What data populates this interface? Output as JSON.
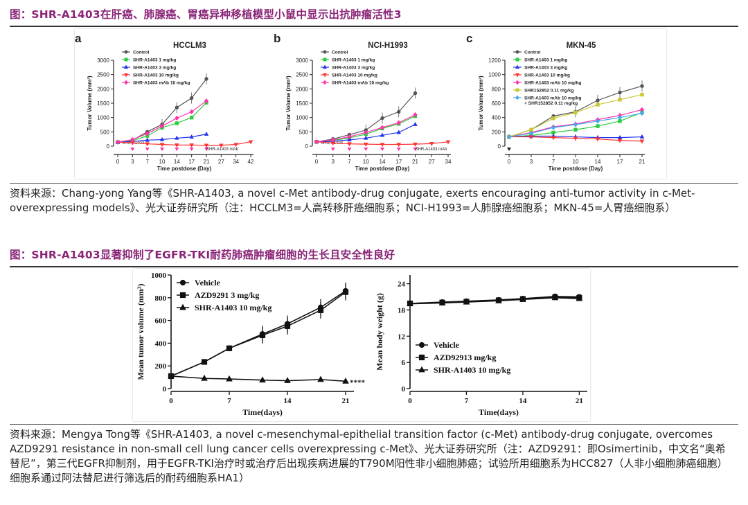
{
  "fig1": {
    "heading": "图：SHR-A1403在肝癌、肺腺癌、胃癌异种移植模型小鼠中显示出抗肿瘤活性3",
    "source": "资料来源：Chang-yong Yang等《SHR-A1403, a novel c-Met antibody-drug conjugate, exerts encouraging anti-tumor activity in c-Met-overexpressing models》、光大证券研究所（注：HCCLM3=人高转移肝癌细胞系；NCI-H1993=人肺腺癌细胞系；MKN-45=人胃癌细胞系）"
  },
  "fig2": {
    "heading": "图：SHR-A1403显著抑制了EGFR-TKI耐药肺癌肿瘤细胞的生长且安全性良好",
    "source": "资料来源：Mengya Tong等《SHR-A1403, a novel c-mesenchymal-epithelial transition factor (c-Met) antibody-drug conjugate, overcomes AZD9291 resistance in non-small cell lung cancer cells overexpressing c-Met》、光大证券研究所（注：AZD9291：即Osimertinib，中文名“奥希替尼”，第三代EGFR抑制剂，用于EGFR-TKI治疗时或治疗后出现疾病进展的T790M阳性非小细胞肺癌；试验所用细胞系为HCC827（人非小细胞肺癌细胞）细胞系通过阿法替尼进行筛选后的耐药细胞系HA1）"
  },
  "chart_data": [
    {
      "type": "line",
      "panel": "a",
      "title": "HCCLM3",
      "xlabel": "Time postdose (Day)",
      "ylabel": "Tumor Volume (mm³)",
      "xticks": [
        0,
        3,
        7,
        10,
        14,
        17,
        21,
        27,
        34,
        42
      ],
      "yticks": [
        0,
        500,
        1000,
        1500,
        2000,
        2500,
        3000
      ],
      "ylim": [
        0,
        3000
      ],
      "legend": "top-left",
      "annotations": [
        "SHR-A1403",
        "SHR-A1403 mAb"
      ],
      "series": [
        {
          "name": "Control",
          "color": "#555555",
          "marker": "circle",
          "x": [
            0,
            3,
            7,
            10,
            14,
            17,
            21
          ],
          "y": [
            140,
            210,
            500,
            760,
            1350,
            1680,
            2350
          ]
        },
        {
          "name": "SHR-A1403 1 mg/kg",
          "color": "#2ecc40",
          "marker": "square",
          "x": [
            0,
            3,
            7,
            10,
            14,
            17,
            21
          ],
          "y": [
            140,
            190,
            360,
            650,
            800,
            1000,
            1520
          ]
        },
        {
          "name": "SHR-A1403 3 mg/kg",
          "color": "#2233ee",
          "marker": "triangle",
          "x": [
            0,
            3,
            7,
            10,
            14,
            17,
            21
          ],
          "y": [
            140,
            160,
            210,
            230,
            280,
            320,
            420
          ]
        },
        {
          "name": "SHR-A1403 10 mg/kg",
          "color": "#ff3333",
          "marker": "triangle-down",
          "x": [
            0,
            3,
            7,
            10,
            14,
            17,
            21,
            27,
            34,
            42
          ],
          "y": [
            140,
            120,
            80,
            60,
            40,
            40,
            30,
            30,
            60,
            150
          ]
        },
        {
          "name": "SHR-A1403 mAb 10 mg/kg",
          "color": "#ff33aa",
          "marker": "diamond",
          "x": [
            0,
            3,
            7,
            10,
            14,
            17,
            21
          ],
          "y": [
            140,
            230,
            440,
            700,
            980,
            1200,
            1580
          ]
        }
      ]
    },
    {
      "type": "line",
      "panel": "b",
      "title": "NCI-H1993",
      "xlabel": "Time postdose (Day)",
      "ylabel": "Tumor Volume (mm³)",
      "xticks": [
        0,
        3,
        7,
        10,
        14,
        17,
        21,
        27,
        34
      ],
      "yticks": [
        0,
        500,
        1000,
        1500,
        2000,
        2500,
        3000
      ],
      "ylim": [
        0,
        3000
      ],
      "legend": "top-left",
      "annotations": [
        "SHR-A1403",
        "SHR-A1403 mAb"
      ],
      "series": [
        {
          "name": "Control",
          "color": "#555555",
          "marker": "circle",
          "x": [
            0,
            3,
            7,
            10,
            14,
            17,
            21
          ],
          "y": [
            150,
            250,
            400,
            560,
            980,
            1200,
            1850
          ]
        },
        {
          "name": "SHR-A1403 1 mg/kg",
          "color": "#2ecc40",
          "marker": "square",
          "x": [
            0,
            3,
            7,
            10,
            14,
            17,
            21
          ],
          "y": [
            150,
            200,
            290,
            420,
            620,
            780,
            1050
          ]
        },
        {
          "name": "SHR-A1403 3 mg/kg",
          "color": "#2233ee",
          "marker": "triangle",
          "x": [
            0,
            3,
            7,
            10,
            14,
            17,
            21
          ],
          "y": [
            150,
            170,
            220,
            280,
            380,
            480,
            760
          ]
        },
        {
          "name": "SHR-A1403 10 mg/kg",
          "color": "#ff3333",
          "marker": "triangle-down",
          "x": [
            0,
            3,
            7,
            10,
            14,
            17,
            21,
            27,
            34
          ],
          "y": [
            150,
            110,
            80,
            70,
            60,
            60,
            70,
            90,
            150
          ]
        },
        {
          "name": "SHR-A1403 mAb 10 mg/kg",
          "color": "#ff33aa",
          "marker": "diamond",
          "x": [
            0,
            3,
            7,
            10,
            14,
            17,
            21
          ],
          "y": [
            150,
            220,
            330,
            480,
            650,
            820,
            1100
          ]
        }
      ]
    },
    {
      "type": "line",
      "panel": "c",
      "title": "MKN-45",
      "xlabel": "Time postdose (Day)",
      "ylabel": "Tumor Volume (mm³)",
      "xticks": [
        0,
        3,
        7,
        10,
        14,
        17,
        21
      ],
      "yticks": [
        0,
        200,
        400,
        600,
        800,
        1000,
        1200
      ],
      "ylim": [
        0,
        1200
      ],
      "legend": "top-left",
      "series": [
        {
          "name": "Control",
          "color": "#555555",
          "marker": "circle",
          "x": [
            0,
            3,
            7,
            10,
            14,
            17,
            21
          ],
          "y": [
            130,
            230,
            420,
            480,
            640,
            750,
            840
          ]
        },
        {
          "name": "SHR-A1403 1 mg/kg",
          "color": "#2ecc40",
          "marker": "square",
          "x": [
            0,
            3,
            7,
            10,
            14,
            17,
            21
          ],
          "y": [
            130,
            150,
            190,
            230,
            280,
            350,
            470
          ]
        },
        {
          "name": "SHR-A1403 3 mg/kg",
          "color": "#2233ee",
          "marker": "triangle",
          "x": [
            0,
            3,
            7,
            10,
            14,
            17,
            21
          ],
          "y": [
            130,
            140,
            140,
            130,
            120,
            120,
            130
          ]
        },
        {
          "name": "SHR-A1403 10 mg/kg",
          "color": "#ff3333",
          "marker": "triangle-down",
          "x": [
            0,
            3,
            7,
            10,
            14,
            17,
            21
          ],
          "y": [
            130,
            130,
            120,
            110,
            100,
            80,
            70
          ]
        },
        {
          "name": "SHR-A1403 mAb 10 mg/kg",
          "color": "#ff33aa",
          "marker": "diamond",
          "x": [
            0,
            3,
            7,
            10,
            14,
            17,
            21
          ],
          "y": [
            130,
            190,
            270,
            310,
            370,
            430,
            510
          ]
        },
        {
          "name": "SHR152852 0.11 mg/kg",
          "color": "#c8c832",
          "marker": "square",
          "x": [
            0,
            3,
            7,
            10,
            14,
            17,
            21
          ],
          "y": [
            130,
            230,
            390,
            470,
            580,
            650,
            720
          ]
        },
        {
          "name": "SHR-A1403 mAb 10 mg/kg + SHR152852 0.11 mg/kg",
          "color": "#44aaee",
          "marker": "diamond",
          "x": [
            0,
            3,
            7,
            10,
            14,
            17,
            21
          ],
          "y": [
            130,
            180,
            260,
            300,
            350,
            400,
            460
          ]
        }
      ]
    },
    {
      "type": "line",
      "panel": "tumor-volume",
      "xlabel": "Time(days)",
      "ylabel": "Mean tumor volume (mm³)",
      "xticks": [
        0,
        7,
        14,
        21
      ],
      "yticks": [
        0,
        200,
        400,
        600,
        800,
        1000
      ],
      "ylim": [
        0,
        1000
      ],
      "legend": "top-left",
      "annotations": [
        "****"
      ],
      "series": [
        {
          "name": "Vehicle",
          "marker": "circle",
          "x": [
            0,
            4,
            7,
            11,
            14,
            18,
            21
          ],
          "y": [
            110,
            235,
            355,
            480,
            570,
            715,
            860
          ]
        },
        {
          "name": "AZD9291 3 mg/kg",
          "marker": "square",
          "x": [
            0,
            4,
            7,
            11,
            14,
            18,
            21
          ],
          "y": [
            110,
            235,
            355,
            470,
            550,
            690,
            850
          ]
        },
        {
          "name": "SHR-A1403 10 mg/kg",
          "marker": "triangle",
          "x": [
            0,
            4,
            7,
            11,
            14,
            18,
            21
          ],
          "y": [
            110,
            90,
            85,
            75,
            70,
            80,
            65
          ]
        }
      ]
    },
    {
      "type": "line",
      "panel": "body-weight",
      "xlabel": "Time(days)",
      "ylabel": "Mean body weight (g)",
      "xticks": [
        0,
        7,
        14,
        21
      ],
      "yticks": [
        0,
        6,
        12,
        18,
        24
      ],
      "ylim": [
        0,
        26
      ],
      "legend": "bottom-left",
      "series": [
        {
          "name": "Vehicle",
          "marker": "circle",
          "x": [
            0,
            4,
            7,
            11,
            14,
            18,
            21
          ],
          "y": [
            19.5,
            19.8,
            20.0,
            20.3,
            20.6,
            21.1,
            21.0
          ]
        },
        {
          "name": "AZD92913 mg/kg",
          "marker": "square",
          "x": [
            0,
            4,
            7,
            11,
            14,
            18,
            21
          ],
          "y": [
            19.5,
            19.7,
            19.9,
            20.2,
            20.5,
            20.9,
            20.8
          ]
        },
        {
          "name": "SHR-A1403 10 mg/kg",
          "marker": "triangle",
          "x": [
            0,
            4,
            7,
            11,
            14,
            18,
            21
          ],
          "y": [
            19.4,
            19.6,
            19.8,
            20.1,
            20.4,
            20.8,
            20.6
          ]
        }
      ]
    }
  ]
}
